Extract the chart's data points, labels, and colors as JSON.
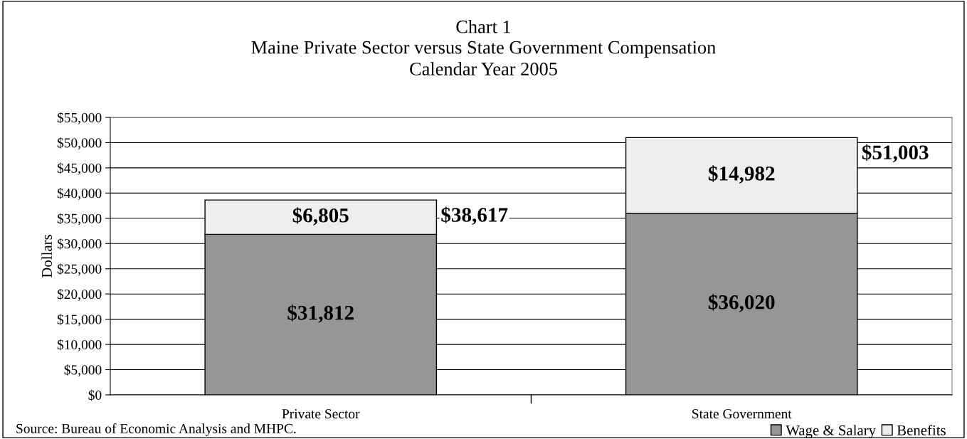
{
  "chart_data": {
    "type": "bar",
    "title": "Chart 1",
    "subtitle": "Maine Private Sector versus State Government Compensation\nCalendar Year 2005",
    "ylabel": "Dollars",
    "categories": [
      "Private Sector",
      "State Government"
    ],
    "series": [
      {
        "name": "Wage & Salary",
        "color": "#969696",
        "values": [
          31812,
          36020
        ],
        "value_labels": [
          "$31,812",
          "$36,020"
        ]
      },
      {
        "name": "Benefits",
        "color": "#eeeeee",
        "values": [
          6805,
          14982
        ],
        "value_labels": [
          "$6,805",
          "$14,982"
        ]
      }
    ],
    "stacked": true,
    "totals": [
      "$38,617",
      "$51,003"
    ],
    "ylim": [
      0,
      55000
    ],
    "yticks": [
      {
        "value": 0,
        "label": "$0"
      },
      {
        "value": 5000,
        "label": "$5,000"
      },
      {
        "value": 10000,
        "label": "$10,000"
      },
      {
        "value": 15000,
        "label": "$15,000"
      },
      {
        "value": 20000,
        "label": "$20,000"
      },
      {
        "value": 25000,
        "label": "$25,000"
      },
      {
        "value": 30000,
        "label": "$30,000"
      },
      {
        "value": 35000,
        "label": "$35,000"
      },
      {
        "value": 40000,
        "label": "$40,000"
      },
      {
        "value": 45000,
        "label": "$45,000"
      },
      {
        "value": 50000,
        "label": "$50,000"
      },
      {
        "value": 55000,
        "label": "$55,000"
      }
    ],
    "grid": "y",
    "legend": "bottom right",
    "annotations": [
      "Source: Bureau of Economic Analysis and MHPC."
    ]
  }
}
